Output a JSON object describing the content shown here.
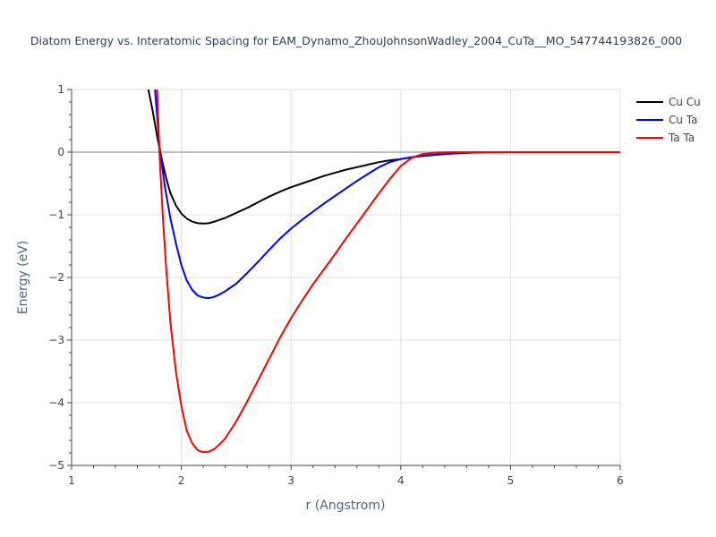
{
  "chart_data": {
    "type": "line",
    "title": "Diatom Energy vs. Interatomic Spacing for EAM_Dynamo_ZhouJohnsonWadley_2004_CuTa__MO_547744193826_000",
    "xlabel": "r (Angstrom)",
    "ylabel": "Energy (eV)",
    "xlim": [
      1,
      6
    ],
    "ylim": [
      -5,
      1
    ],
    "xticks": [
      1,
      2,
      3,
      4,
      5,
      6
    ],
    "yticks": [
      1,
      0,
      -1,
      -2,
      -3,
      -4,
      -5
    ],
    "ytick_labels": [
      "1",
      "0",
      "−1",
      "−2",
      "−3",
      "−4",
      "−5"
    ],
    "grid": true,
    "legend_position": "top-right",
    "series": [
      {
        "name": "Cu Cu",
        "color": "#000000",
        "x": [
          1.7,
          1.74,
          1.78,
          1.82,
          1.86,
          1.9,
          1.95,
          2.0,
          2.05,
          2.1,
          2.15,
          2.2,
          2.25,
          2.3,
          2.35,
          2.4,
          2.5,
          2.6,
          2.7,
          2.8,
          2.9,
          3.0,
          3.1,
          3.2,
          3.3,
          3.4,
          3.5,
          3.6,
          3.7,
          3.8,
          3.9,
          4.0,
          4.1,
          4.2,
          4.3,
          4.4,
          4.5,
          4.6,
          4.7,
          4.8,
          4.9,
          5.0,
          5.5,
          6.0
        ],
        "y": [
          1.0,
          0.65,
          0.25,
          -0.1,
          -0.4,
          -0.65,
          -0.85,
          -0.98,
          -1.06,
          -1.11,
          -1.135,
          -1.14,
          -1.135,
          -1.11,
          -1.08,
          -1.05,
          -0.97,
          -0.89,
          -0.8,
          -0.71,
          -0.63,
          -0.56,
          -0.5,
          -0.44,
          -0.38,
          -0.33,
          -0.28,
          -0.24,
          -0.2,
          -0.16,
          -0.13,
          -0.11,
          -0.08,
          -0.06,
          -0.045,
          -0.03,
          -0.02,
          -0.01,
          -0.005,
          -0.002,
          -0.001,
          0.0,
          0.0,
          0.0
        ]
      },
      {
        "name": "Cu Ta",
        "color": "#0000ff",
        "x": [
          1.76,
          1.8,
          1.85,
          1.9,
          1.95,
          2.0,
          2.05,
          2.1,
          2.15,
          2.2,
          2.25,
          2.3,
          2.35,
          2.4,
          2.5,
          2.6,
          2.7,
          2.8,
          2.9,
          3.0,
          3.1,
          3.2,
          3.3,
          3.4,
          3.5,
          3.6,
          3.7,
          3.8,
          3.9,
          4.0,
          4.1,
          4.2,
          4.3,
          4.4,
          4.5,
          4.6,
          4.7,
          4.8,
          4.9,
          5.0,
          5.5,
          6.0
        ],
        "y": [
          1.0,
          0.1,
          -0.55,
          -1.05,
          -1.45,
          -1.8,
          -2.05,
          -2.2,
          -2.29,
          -2.32,
          -2.33,
          -2.31,
          -2.27,
          -2.22,
          -2.1,
          -1.93,
          -1.75,
          -1.56,
          -1.38,
          -1.22,
          -1.08,
          -0.95,
          -0.82,
          -0.7,
          -0.58,
          -0.46,
          -0.35,
          -0.24,
          -0.16,
          -0.11,
          -0.08,
          -0.06,
          -0.04,
          -0.03,
          -0.02,
          -0.01,
          -0.005,
          -0.002,
          -0.001,
          0.0,
          0.0,
          0.0
        ]
      },
      {
        "name": "Ta Ta",
        "color": "#ff0000",
        "x": [
          1.78,
          1.8,
          1.83,
          1.86,
          1.9,
          1.95,
          2.0,
          2.05,
          2.1,
          2.15,
          2.2,
          2.25,
          2.3,
          2.35,
          2.4,
          2.5,
          2.6,
          2.7,
          2.8,
          2.9,
          3.0,
          3.1,
          3.2,
          3.3,
          3.4,
          3.5,
          3.6,
          3.7,
          3.8,
          3.9,
          4.0,
          4.1,
          4.2,
          4.3,
          4.4,
          4.5,
          4.6,
          4.7,
          4.8,
          4.9,
          5.0,
          5.5,
          6.0
        ],
        "y": [
          1.0,
          0.0,
          -1.0,
          -1.8,
          -2.7,
          -3.5,
          -4.05,
          -4.45,
          -4.65,
          -4.76,
          -4.79,
          -4.78,
          -4.74,
          -4.66,
          -4.57,
          -4.3,
          -3.98,
          -3.64,
          -3.3,
          -2.96,
          -2.65,
          -2.37,
          -2.11,
          -1.87,
          -1.63,
          -1.38,
          -1.14,
          -0.9,
          -0.66,
          -0.43,
          -0.22,
          -0.09,
          -0.03,
          -0.01,
          -0.005,
          -0.002,
          -0.001,
          0.0,
          0.0,
          0.0,
          0.0,
          0.0,
          0.0
        ]
      }
    ]
  }
}
